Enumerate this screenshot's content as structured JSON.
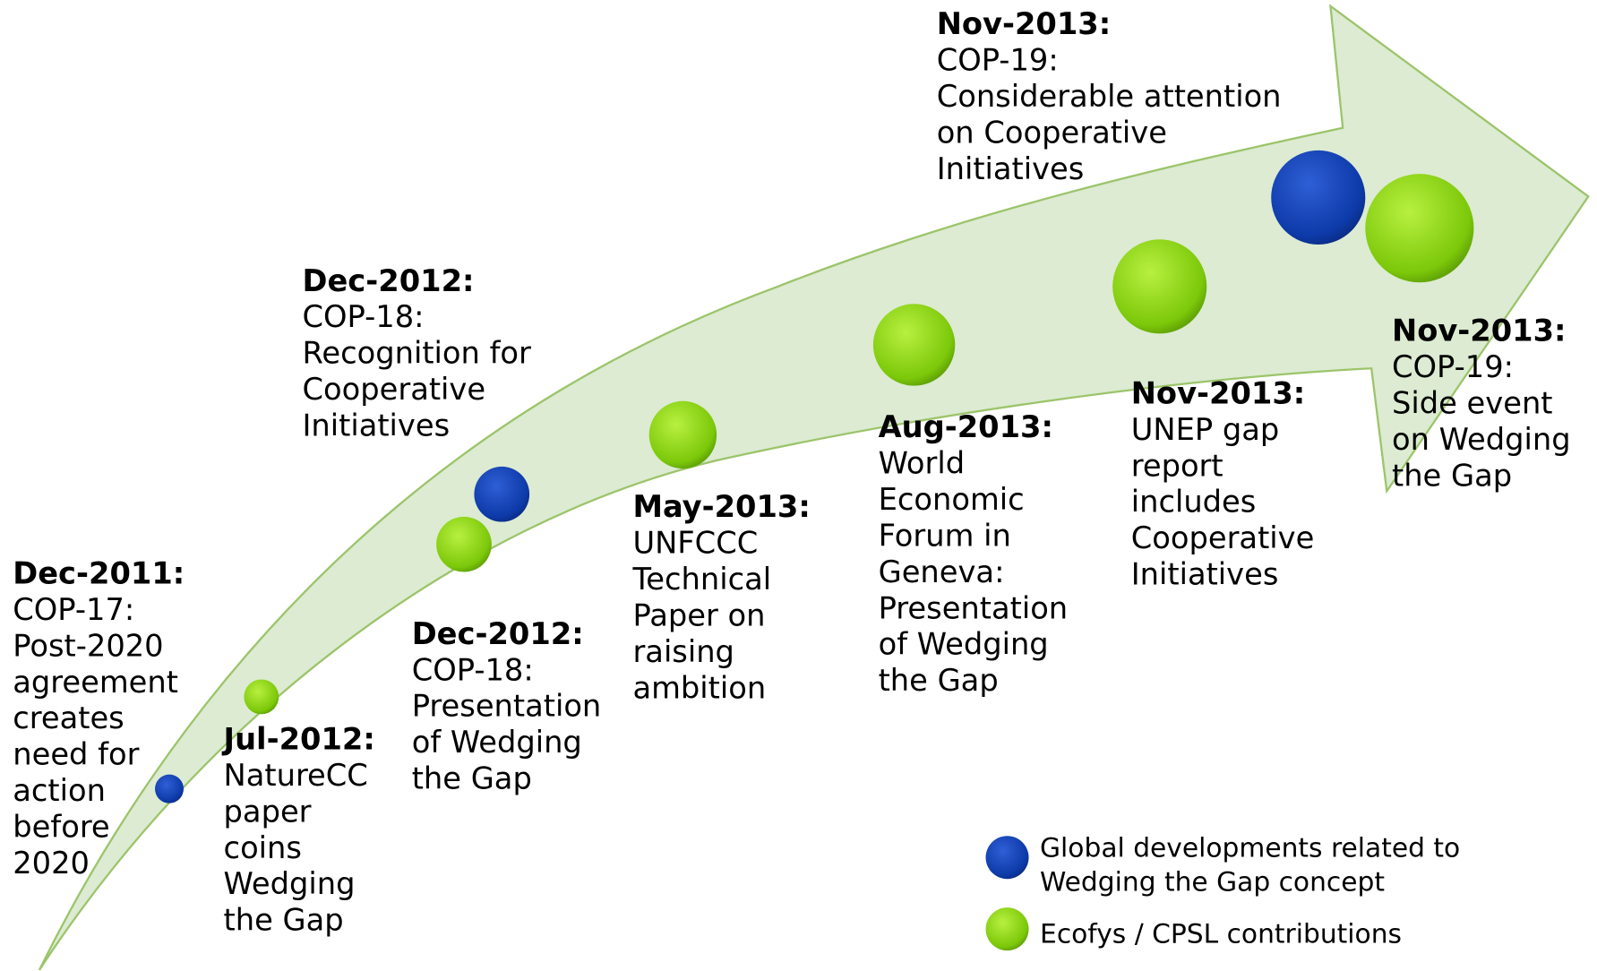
{
  "events": [
    {
      "date": "Dec-2011:",
      "lines": [
        "COP-17:",
        "Post-2020",
        "agreement",
        "creates",
        "need for",
        "action",
        "before",
        "2020"
      ]
    },
    {
      "date": "Jul-2012:",
      "lines": [
        "NatureCC",
        "paper",
        "coins",
        "Wedging",
        "the Gap"
      ]
    },
    {
      "date": "Dec-2012:",
      "lines": [
        "COP-18:",
        "Recognition for",
        "Cooperative",
        "Initiatives"
      ]
    },
    {
      "date": "Dec-2012:",
      "lines": [
        "COP-18:",
        "Presentation",
        "of Wedging",
        "the Gap"
      ]
    },
    {
      "date": "May-2013:",
      "lines": [
        "UNFCCC",
        "Technical",
        "Paper on",
        "raising",
        "ambition"
      ]
    },
    {
      "date": "Aug-2013:",
      "lines": [
        "World",
        "Economic",
        "Forum in",
        "Geneva:",
        "Presentation",
        "of Wedging",
        "the Gap"
      ]
    },
    {
      "date": "Nov-2013:",
      "lines": [
        "UNEP gap",
        "report",
        "includes",
        "Cooperative",
        "Initiatives"
      ]
    },
    {
      "date": "Nov-2013:",
      "lines": [
        "COP-19:",
        "Considerable attention",
        "on Cooperative",
        "Initiatives"
      ]
    },
    {
      "date": "Nov-2013:",
      "lines": [
        "COP-19:",
        "Side event",
        "on Wedging",
        "the Gap"
      ]
    }
  ],
  "legend": [
    {
      "lines": [
        "Global developments related to",
        "Wedging the Gap concept"
      ]
    },
    {
      "lines": [
        "Ecofys / CPSL contributions"
      ]
    }
  ]
}
